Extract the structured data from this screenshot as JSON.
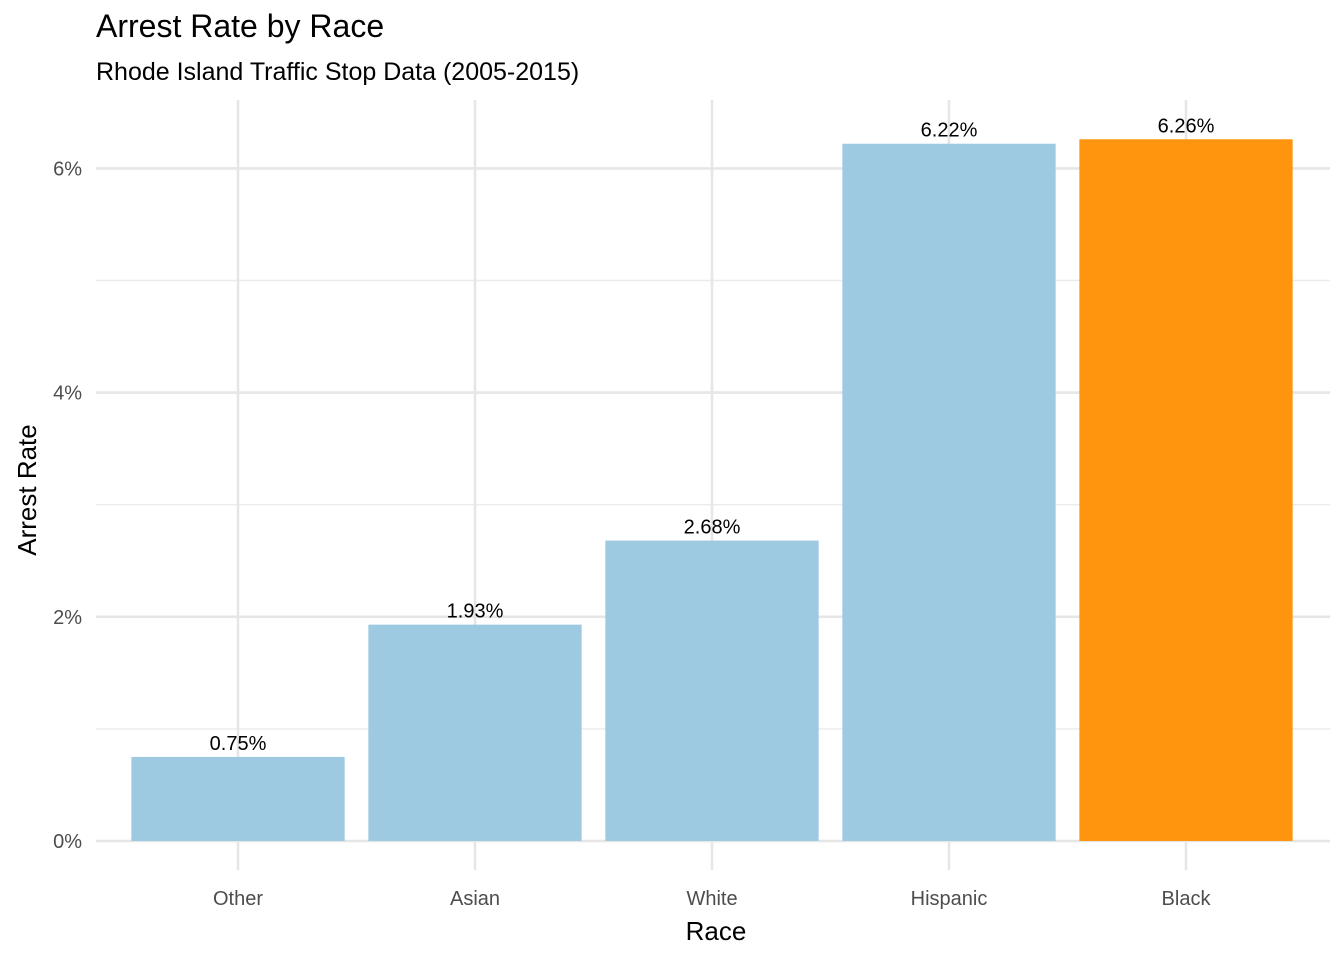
{
  "chart_data": {
    "type": "bar",
    "title": "Arrest Rate by Race",
    "subtitle": "Rhode Island Traffic Stop Data (2005-2015)",
    "xlabel": "Race",
    "ylabel": "Arrest Rate",
    "categories": [
      "Other",
      "Asian",
      "White",
      "Hispanic",
      "Black"
    ],
    "values": [
      0.75,
      1.93,
      2.68,
      6.22,
      6.26
    ],
    "value_labels": [
      "0.75%",
      "1.93%",
      "2.68%",
      "6.22%",
      "6.26%"
    ],
    "colors": [
      "#9ecae1",
      "#9ecae1",
      "#9ecae1",
      "#9ecae1",
      "#ff950e"
    ],
    "yticks": [
      0,
      2,
      4,
      6
    ],
    "ytick_labels": [
      "0%",
      "2%",
      "4%",
      "6%"
    ],
    "ylim": [
      -0.0,
      6.6
    ],
    "grid": true,
    "legend": "none"
  }
}
